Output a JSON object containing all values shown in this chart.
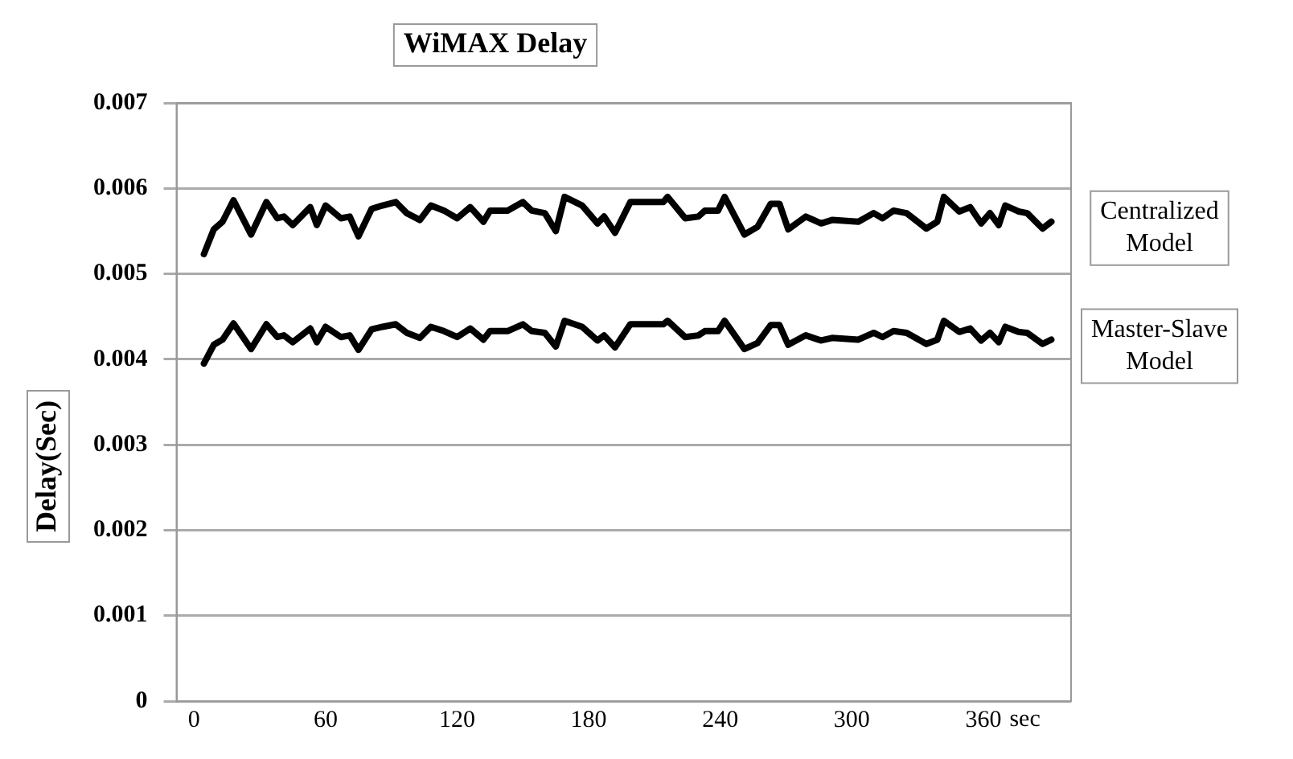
{
  "chart_data": {
    "type": "line",
    "title": "WiMAX Delay",
    "ylabel": "Delay(Sec)",
    "x": [
      4.5,
      9,
      13,
      18,
      26,
      33,
      38,
      41,
      45,
      53,
      56,
      60,
      67,
      71,
      75,
      81,
      86,
      92,
      97,
      103,
      108,
      114,
      120,
      126,
      132,
      135,
      143,
      150,
      154,
      160,
      165,
      169,
      177,
      184,
      187,
      192,
      199,
      214,
      216,
      224,
      230,
      233,
      239,
      242,
      251,
      257,
      263,
      267,
      271,
      279,
      286,
      291,
      303,
      310,
      314,
      319,
      325,
      334,
      339,
      342,
      349,
      354,
      359,
      363,
      367,
      370,
      376,
      380,
      387,
      391
    ],
    "series": [
      {
        "name": "Centralized Model",
        "color": "#000000",
        "values": [
          0.00523,
          0.00552,
          0.00561,
          0.00586,
          0.00546,
          0.00584,
          0.00565,
          0.00567,
          0.00557,
          0.00578,
          0.00557,
          0.0058,
          0.00565,
          0.00567,
          0.00544,
          0.00576,
          0.0058,
          0.00584,
          0.00571,
          0.00563,
          0.0058,
          0.00574,
          0.00565,
          0.00578,
          0.00561,
          0.00574,
          0.00574,
          0.00584,
          0.00574,
          0.00571,
          0.0055,
          0.0059,
          0.0058,
          0.00559,
          0.00567,
          0.00548,
          0.00584,
          0.00584,
          0.0059,
          0.00565,
          0.00567,
          0.00574,
          0.00574,
          0.0059,
          0.00546,
          0.00555,
          0.00582,
          0.00582,
          0.00552,
          0.00567,
          0.00559,
          0.00563,
          0.00561,
          0.00571,
          0.00565,
          0.00574,
          0.00571,
          0.00553,
          0.00561,
          0.0059,
          0.00573,
          0.00578,
          0.00559,
          0.00571,
          0.00557,
          0.0058,
          0.00573,
          0.00571,
          0.00553,
          0.00561
        ]
      },
      {
        "name": "Master-Slave Model",
        "color": "#000000",
        "values": [
          0.00395,
          0.00417,
          0.00423,
          0.00442,
          0.00412,
          0.00441,
          0.00426,
          0.00428,
          0.0042,
          0.00436,
          0.0042,
          0.00438,
          0.00426,
          0.00428,
          0.00411,
          0.00435,
          0.00438,
          0.00441,
          0.00431,
          0.00425,
          0.00438,
          0.00433,
          0.00426,
          0.00436,
          0.00423,
          0.00433,
          0.00433,
          0.00441,
          0.00433,
          0.00431,
          0.00415,
          0.00445,
          0.00438,
          0.00422,
          0.00428,
          0.00414,
          0.00441,
          0.00441,
          0.00445,
          0.00426,
          0.00428,
          0.00433,
          0.00433,
          0.00445,
          0.00412,
          0.00419,
          0.0044,
          0.0044,
          0.00417,
          0.00428,
          0.00422,
          0.00425,
          0.00423,
          0.00431,
          0.00426,
          0.00433,
          0.00431,
          0.00418,
          0.00423,
          0.00445,
          0.00432,
          0.00436,
          0.00422,
          0.00431,
          0.0042,
          0.00438,
          0.00432,
          0.00431,
          0.00418,
          0.00423
        ]
      }
    ],
    "xlabel": "sec",
    "xlim": [
      -8,
      400
    ],
    "xticks": [
      0,
      60,
      120,
      180,
      240,
      300,
      360
    ],
    "ylim": [
      0,
      0.007
    ],
    "yticks": [
      0,
      0.001,
      0.002,
      0.003,
      0.004,
      0.005,
      0.006,
      0.007
    ],
    "grid": "y",
    "legend": false,
    "marker": "none",
    "line_style": "solid"
  }
}
